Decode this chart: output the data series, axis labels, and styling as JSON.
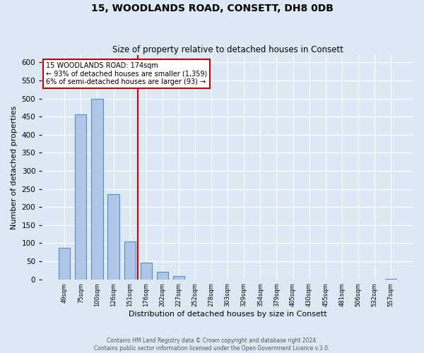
{
  "title": "15, WOODLANDS ROAD, CONSETT, DH8 0DB",
  "subtitle": "Size of property relative to detached houses in Consett",
  "xlabel": "Distribution of detached houses by size in Consett",
  "ylabel": "Number of detached properties",
  "bin_labels": [
    "49sqm",
    "75sqm",
    "100sqm",
    "126sqm",
    "151sqm",
    "176sqm",
    "202sqm",
    "227sqm",
    "252sqm",
    "278sqm",
    "303sqm",
    "329sqm",
    "354sqm",
    "379sqm",
    "405sqm",
    "430sqm",
    "455sqm",
    "481sqm",
    "506sqm",
    "532sqm",
    "557sqm"
  ],
  "bar_values": [
    88,
    457,
    500,
    236,
    105,
    46,
    20,
    10,
    0,
    0,
    0,
    0,
    0,
    0,
    0,
    0,
    0,
    0,
    0,
    0,
    2
  ],
  "bar_color": "#aec6e8",
  "bar_edge_color": "#5b8db8",
  "vline_index": 5,
  "annotation_title": "15 WOODLANDS ROAD: 174sqm",
  "annotation_line1": "← 93% of detached houses are smaller (1,359)",
  "annotation_line2": "6% of semi-detached houses are larger (93) →",
  "annotation_box_color": "#ffffff",
  "annotation_box_edge_color": "#cc0000",
  "vline_color": "#cc0000",
  "ylim": [
    0,
    620
  ],
  "yticks": [
    0,
    50,
    100,
    150,
    200,
    250,
    300,
    350,
    400,
    450,
    500,
    550,
    600
  ],
  "footer1": "Contains HM Land Registry data © Crown copyright and database right 2024.",
  "footer2": "Contains public sector information licensed under the Open Government Licence v.3.0.",
  "background_color": "#dce9f5",
  "plot_bg_color": "#dce9f5"
}
